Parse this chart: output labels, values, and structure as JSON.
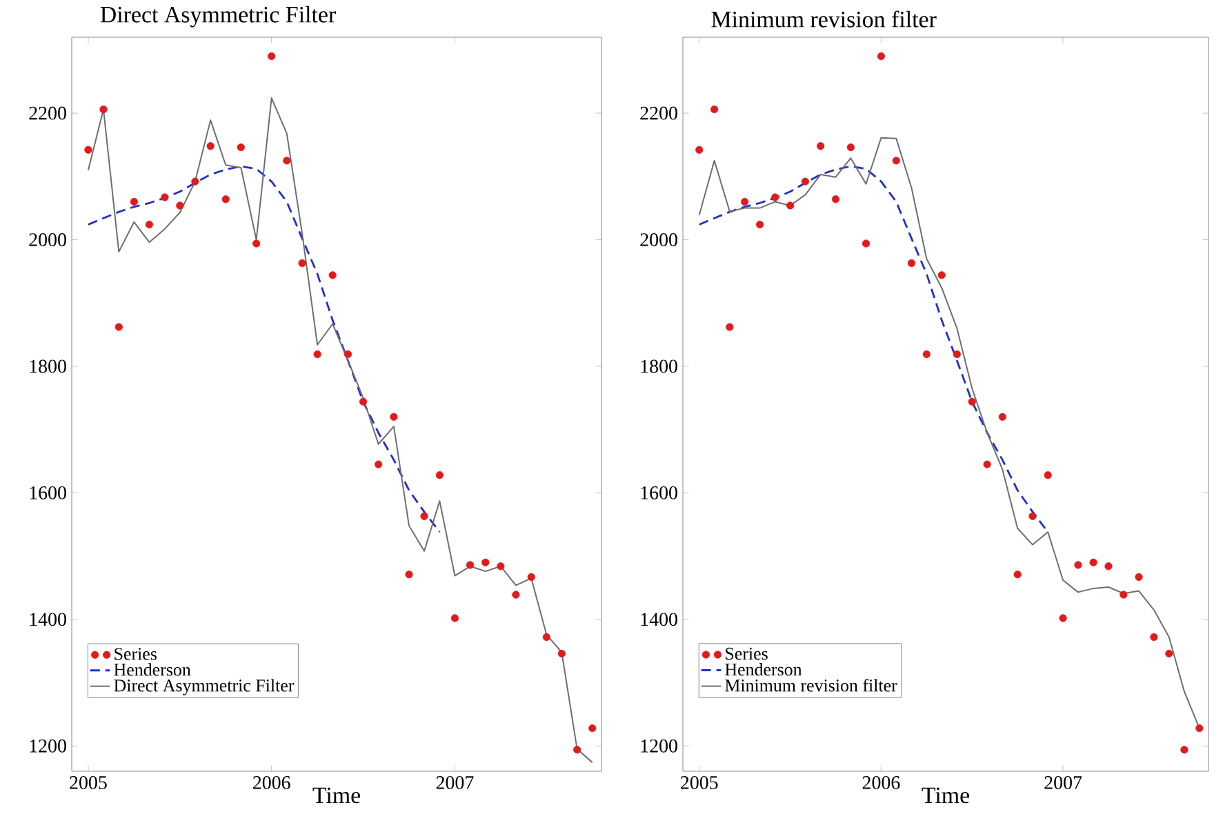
{
  "chart_data": [
    {
      "type": "line",
      "title": "Direct Asymmetric Filter",
      "xlabel": "Time",
      "xlim": [
        2004.91,
        2007.8
      ],
      "ylim": [
        1160,
        2320
      ],
      "xticks": [
        2005,
        2006,
        2007
      ],
      "yticks": [
        1200,
        1400,
        1600,
        1800,
        2000,
        2200
      ],
      "legend": "bottom left",
      "x": [
        2005,
        2005.083,
        2005.167,
        2005.25,
        2005.333,
        2005.417,
        2005.5,
        2005.583,
        2005.667,
        2005.75,
        2005.833,
        2005.917,
        2006,
        2006.083,
        2006.167,
        2006.25,
        2006.333,
        2006.417,
        2006.5,
        2006.583,
        2006.667,
        2006.75,
        2006.833,
        2006.917,
        2007,
        2007.083,
        2007.167,
        2007.25,
        2007.333,
        2007.417,
        2007.5,
        2007.583,
        2007.667,
        2007.75
      ],
      "series": [
        {
          "name": "Series",
          "type": "scatter",
          "marker": "circle",
          "color": "#e31a1c",
          "values": [
            2142,
            2206,
            1862,
            2060,
            2024,
            2067,
            2054,
            2092,
            2148,
            2064,
            2146,
            1994,
            2290,
            2125,
            1963,
            1819,
            1944,
            1819,
            1744,
            1645,
            1720,
            1471,
            1563,
            1628,
            1402,
            1486,
            1490,
            1484,
            1439,
            1467,
            1372,
            1346,
            1194,
            1228
          ]
        },
        {
          "name": "Henderson",
          "line_style": "dashed",
          "color": "#1f2fd0",
          "values": [
            2024,
            2034,
            2044,
            2052,
            2058,
            2066,
            2076,
            2090,
            2103,
            2111,
            2116,
            2112,
            2092,
            2060,
            2002,
            1946,
            1873,
            1809,
            1744,
            1695,
            1652,
            1604,
            1570,
            1538,
            null,
            null,
            null,
            null,
            null,
            null,
            null,
            null,
            null,
            null
          ]
        },
        {
          "name": "Direct Asymmetric Filter",
          "line_style": "solid",
          "color": "#6e6e6e",
          "values": [
            2110,
            2206,
            1981,
            2028,
            1996,
            2017,
            2043,
            2092,
            2189,
            2118,
            2114,
            2000,
            2224,
            2168,
            2010,
            1834,
            1867,
            1809,
            1750,
            1677,
            1705,
            1548,
            1508,
            1587,
            1469,
            1484,
            1476,
            1484,
            1454,
            1465,
            1376,
            1348,
            1195,
            1174
          ]
        }
      ]
    },
    {
      "type": "line",
      "title": "Minimum revision filter",
      "xlabel": "Time",
      "xlim": [
        2004.91,
        2007.8
      ],
      "ylim": [
        1160,
        2320
      ],
      "xticks": [
        2005,
        2006,
        2007
      ],
      "yticks": [
        1200,
        1400,
        1600,
        1800,
        2000,
        2200
      ],
      "legend": "bottom left",
      "x": [
        2005,
        2005.083,
        2005.167,
        2005.25,
        2005.333,
        2005.417,
        2005.5,
        2005.583,
        2005.667,
        2005.75,
        2005.833,
        2005.917,
        2006,
        2006.083,
        2006.167,
        2006.25,
        2006.333,
        2006.417,
        2006.5,
        2006.583,
        2006.667,
        2006.75,
        2006.833,
        2006.917,
        2007,
        2007.083,
        2007.167,
        2007.25,
        2007.333,
        2007.417,
        2007.5,
        2007.583,
        2007.667,
        2007.75
      ],
      "series": [
        {
          "name": "Series",
          "type": "scatter",
          "marker": "circle",
          "color": "#e31a1c",
          "values": [
            2142,
            2206,
            1862,
            2060,
            2024,
            2067,
            2054,
            2092,
            2148,
            2064,
            2146,
            1994,
            2290,
            2125,
            1963,
            1819,
            1944,
            1819,
            1744,
            1645,
            1720,
            1471,
            1563,
            1628,
            1402,
            1486,
            1490,
            1484,
            1439,
            1467,
            1372,
            1346,
            1194,
            1228
          ]
        },
        {
          "name": "Henderson",
          "line_style": "dashed",
          "color": "#1f2fd0",
          "values": [
            2024,
            2034,
            2044,
            2052,
            2058,
            2066,
            2076,
            2090,
            2103,
            2111,
            2116,
            2112,
            2092,
            2060,
            2002,
            1946,
            1873,
            1809,
            1744,
            1695,
            1652,
            1604,
            1570,
            1538,
            null,
            null,
            null,
            null,
            null,
            null,
            null,
            null,
            null,
            null
          ]
        },
        {
          "name": "Minimum revision filter",
          "line_style": "solid",
          "color": "#6e6e6e",
          "values": [
            2039,
            2125,
            2045,
            2050,
            2050,
            2060,
            2054,
            2071,
            2103,
            2099,
            2129,
            2088,
            2161,
            2160,
            2082,
            1970,
            1924,
            1860,
            1765,
            1695,
            1637,
            1544,
            1518,
            1538,
            1462,
            1443,
            1449,
            1451,
            1441,
            1445,
            1415,
            1372,
            1286,
            1228
          ]
        }
      ]
    }
  ]
}
